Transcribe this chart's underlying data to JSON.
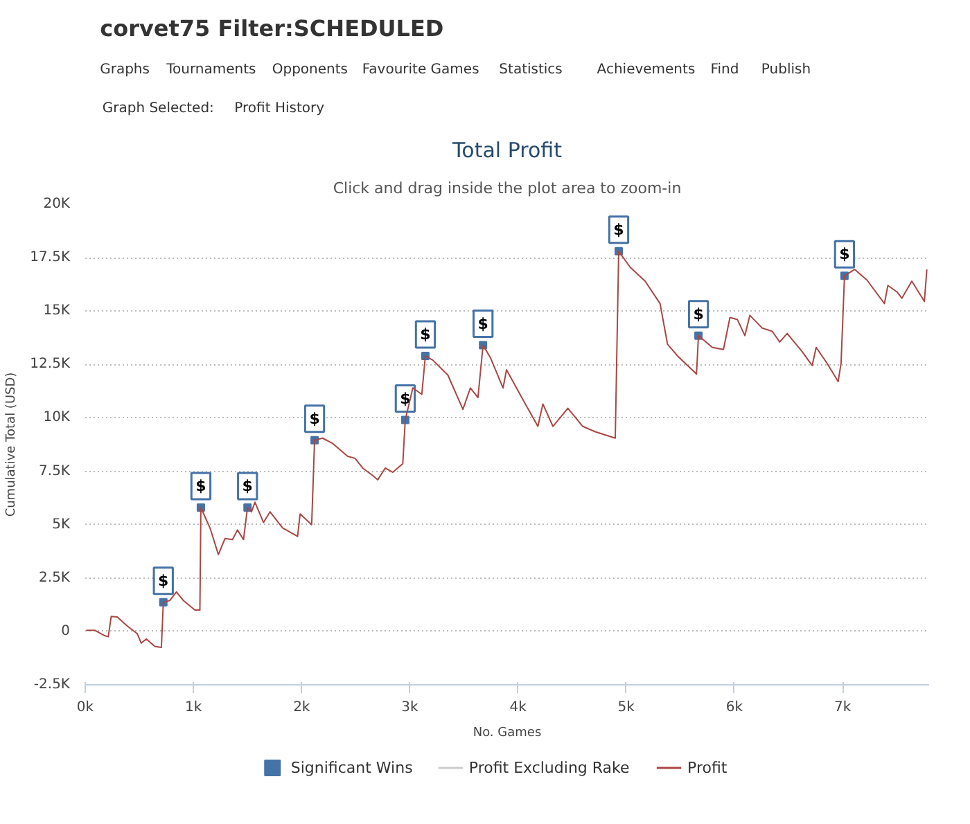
{
  "chart_data": {
    "type": "line",
    "title": "Total Profit",
    "subtitle": "Click and drag inside the plot area to zoom-in",
    "xlabel": "No. Games",
    "ylabel": "Cumulative Total (USD)",
    "xlim": [
      0,
      7800
    ],
    "ylim": [
      -2500,
      20000
    ],
    "xticks": [
      {
        "value": 0,
        "label": "0k"
      },
      {
        "value": 1000,
        "label": "1k"
      },
      {
        "value": 2000,
        "label": "2k"
      },
      {
        "value": 3000,
        "label": "3k"
      },
      {
        "value": 4000,
        "label": "4k"
      },
      {
        "value": 5000,
        "label": "5k"
      },
      {
        "value": 6000,
        "label": "6k"
      },
      {
        "value": 7000,
        "label": "7k"
      }
    ],
    "yticks": [
      {
        "value": -2500,
        "label": "-2.5K"
      },
      0,
      {
        "value": 2500,
        "label": "2.5K"
      },
      {
        "value": 5000,
        "label": "5K"
      },
      {
        "value": 7500,
        "label": "7.5K"
      },
      {
        "value": 10000,
        "label": "10K"
      },
      {
        "value": 12500,
        "label": "12.5K"
      },
      {
        "value": 15000,
        "label": "15K"
      },
      {
        "value": 17500,
        "label": "17.5K"
      },
      {
        "value": 20000,
        "label": "20K"
      }
    ],
    "grid": "y",
    "legend": "bottom",
    "marker": "none",
    "line_style": "solid",
    "series": [
      {
        "name": "Profit Excluding Rake",
        "color": "#cccccc"
      },
      {
        "name": "Profit",
        "color": "#aa4643",
        "x": [
          10,
          90,
          180,
          213,
          240,
          296,
          390,
          480,
          518,
          565,
          643,
          704,
          722,
          782,
          843,
          907,
          1014,
          1060,
          1069,
          1153,
          1231,
          1292,
          1361,
          1407,
          1463,
          1500,
          1537,
          1569,
          1648,
          1708,
          1824,
          1963,
          1986,
          2093,
          2120,
          2194,
          2287,
          2426,
          2495,
          2565,
          2657,
          2704,
          2773,
          2843,
          2912,
          2935,
          2958,
          3028,
          3111,
          3144,
          3213,
          3352,
          3491,
          3560,
          3630,
          3677,
          3747,
          3862,
          3894,
          4046,
          4184,
          4230,
          4323,
          4461,
          4599,
          4714,
          4899,
          4931,
          5037,
          5175,
          5313,
          5382,
          5475,
          5650,
          5668,
          5797,
          5899,
          5959,
          6028,
          6097,
          6143,
          6258,
          6350,
          6419,
          6488,
          6627,
          6719,
          6756,
          6857,
          6959,
          6986,
          7018,
          7111,
          7226,
          7387,
          7419,
          7502,
          7548,
          7640,
          7756,
          7779
        ],
        "values": [
          50,
          50,
          -200,
          -250,
          700,
          680,
          250,
          -100,
          -550,
          -350,
          -700,
          -750,
          1370,
          1450,
          1850,
          1450,
          1000,
          1000,
          5800,
          4850,
          3600,
          4350,
          4300,
          4750,
          4300,
          5800,
          5600,
          6050,
          5100,
          5600,
          4850,
          4450,
          5500,
          5000,
          8950,
          9050,
          8800,
          8200,
          8100,
          7650,
          7300,
          7100,
          7650,
          7450,
          7750,
          7850,
          9900,
          11400,
          11100,
          12900,
          12700,
          12000,
          10400,
          11400,
          10950,
          13400,
          12800,
          11400,
          12250,
          10850,
          9600,
          10650,
          9600,
          10450,
          9600,
          9350,
          9050,
          17800,
          17050,
          16400,
          15350,
          13450,
          12900,
          12050,
          13850,
          13300,
          13200,
          14700,
          14600,
          13850,
          14800,
          14200,
          14050,
          13550,
          13950,
          13100,
          12450,
          13300,
          12550,
          11700,
          12550,
          16650,
          16950,
          16450,
          15350,
          16200,
          15900,
          15600,
          16400,
          15450,
          16950
        ]
      },
      {
        "name": "Significant Wins",
        "type": "scatter",
        "marker": "square",
        "color": "#4572a7",
        "x": [
          722,
          1069,
          1500,
          2120,
          2958,
          3144,
          3677,
          4931,
          5668,
          7018
        ],
        "values": [
          1370,
          5800,
          5800,
          8950,
          9900,
          12900,
          13400,
          17800,
          13850,
          16650
        ]
      }
    ],
    "annotations": [
      "corvet75 Filter:SCHEDULED",
      "Graphs",
      "Tournaments",
      "Opponents",
      "Favourite Games",
      "Statistics",
      "Achievements",
      "Find",
      "Publish",
      "Graph Selected:",
      "Profit History",
      {
        "text": "$",
        "x": 722,
        "y": 1370
      },
      {
        "text": "$",
        "x": 1069,
        "y": 5800
      },
      {
        "text": "$",
        "x": 1500,
        "y": 5800
      },
      {
        "text": "$",
        "x": 2120,
        "y": 8950
      },
      {
        "text": "$",
        "x": 2958,
        "y": 9900
      },
      {
        "text": "$",
        "x": 3144,
        "y": 12900
      },
      {
        "text": "$",
        "x": 3677,
        "y": 13400
      },
      {
        "text": "$",
        "x": 4931,
        "y": 17800
      },
      {
        "text": "$",
        "x": 5668,
        "y": 13850
      },
      {
        "text": "$",
        "x": 7018,
        "y": 16650
      }
    ]
  }
}
